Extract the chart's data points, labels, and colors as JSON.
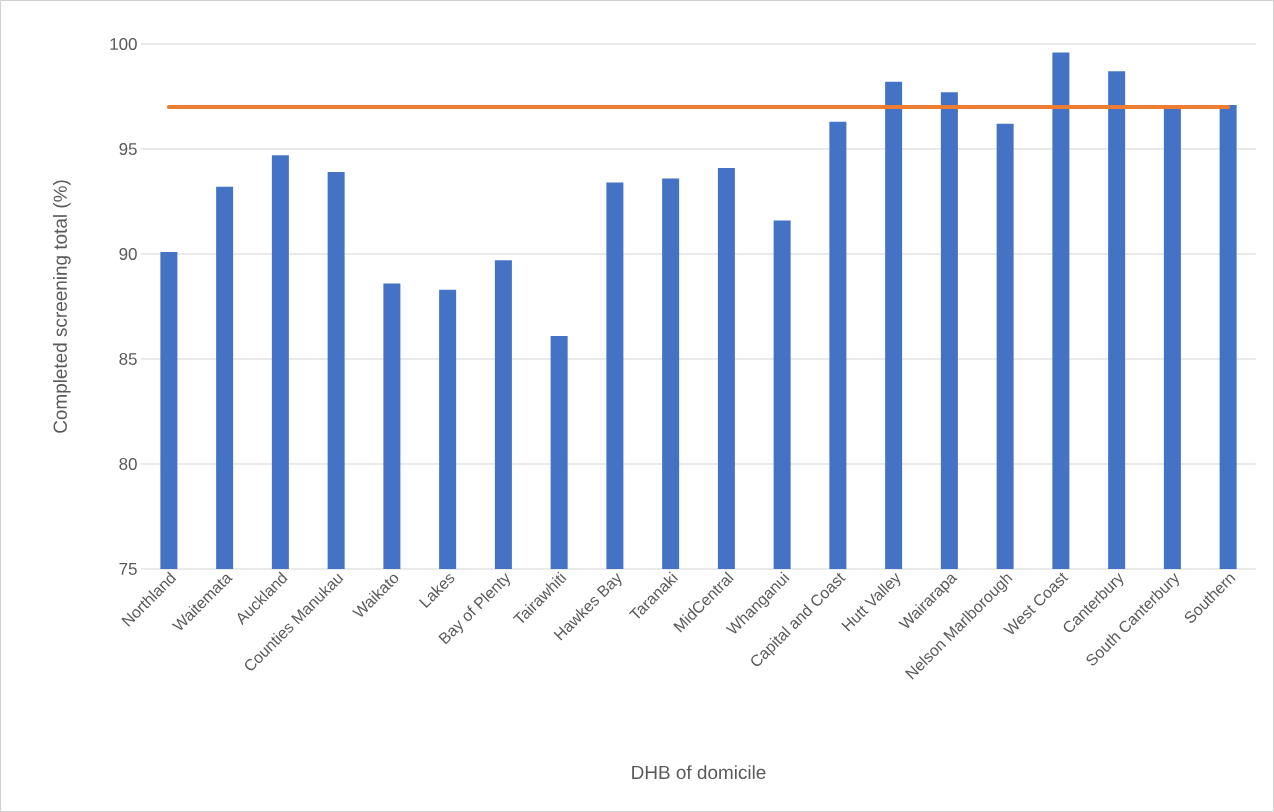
{
  "chart_data": {
    "type": "bar",
    "xlabel": "DHB of domicile",
    "ylabel": "Completed screening total (%)",
    "categories": [
      "Northland",
      "Waitemata",
      "Auckland",
      "Counties Manukau",
      "Waikato",
      "Lakes",
      "Bay of Plenty",
      "Tairawhiti",
      "Hawkes Bay",
      "Taranaki",
      "MidCentral",
      "Whanganui",
      "Capital and Coast",
      "Hutt Valley",
      "Wairarapa",
      "Nelson Marlborough",
      "West Coast",
      "Canterbury",
      "South Canterbury",
      "Southern"
    ],
    "series": [
      {
        "color": "#4472c4",
        "values": [
          90.1,
          93.2,
          94.7,
          93.9,
          88.6,
          88.3,
          89.7,
          86.1,
          93.4,
          93.6,
          94.1,
          91.6,
          96.3,
          98.2,
          97.7,
          96.2,
          99.6,
          98.7,
          97.0,
          97.1
        ]
      },
      {
        "type": "line",
        "color": "#ed7d31",
        "values": [
          97,
          97,
          97,
          97,
          97,
          97,
          97,
          97,
          97,
          97,
          97,
          97,
          97,
          97,
          97,
          97,
          97,
          97,
          97,
          97
        ]
      }
    ],
    "ylim": [
      75,
      100
    ],
    "yticks": [
      75,
      80,
      85,
      90,
      95,
      100
    ],
    "grid": "y",
    "marker": "none"
  }
}
